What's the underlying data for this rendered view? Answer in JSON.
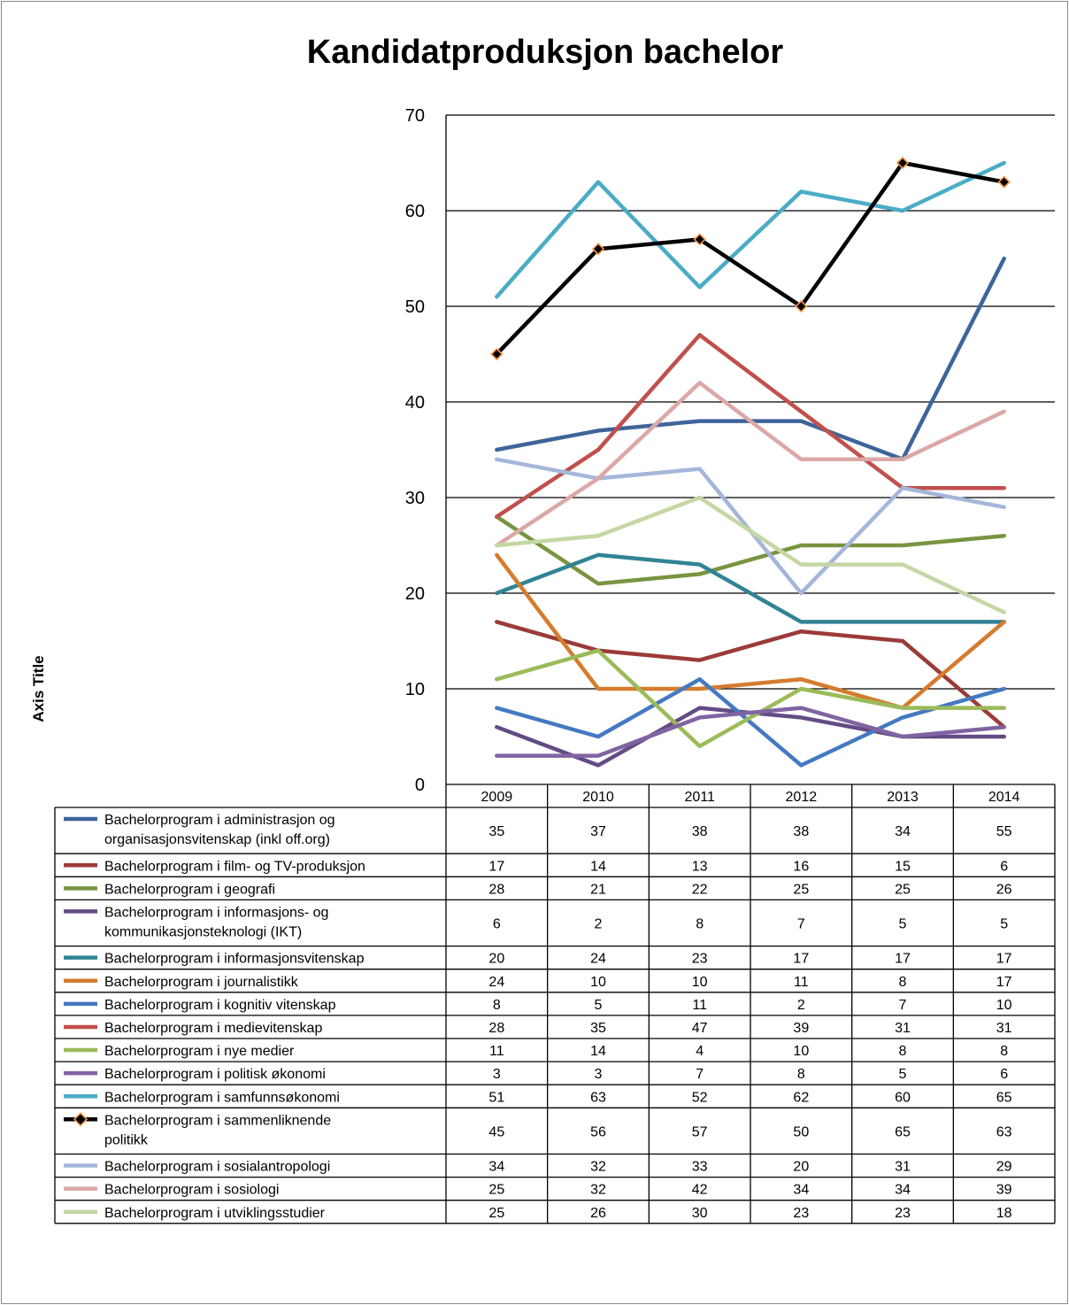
{
  "chart_data": {
    "type": "line",
    "title": "Kandidatproduksjon bachelor",
    "ylabel": "Axis Title",
    "xlabel": "",
    "ylim": [
      0,
      70
    ],
    "yticks": [
      0,
      10,
      20,
      30,
      40,
      50,
      60,
      70
    ],
    "grid": "horizontal",
    "legend": "data-table-below",
    "categories": [
      "2009",
      "2010",
      "2011",
      "2012",
      "2013",
      "2014"
    ],
    "series": [
      {
        "name": "Bachelorprogram i administrasjon og organisasjonsvitenskap (inkl off.org)",
        "label_lines": [
          "Bachelorprogram i administrasjon og",
          "organisasjonsvitenskap (inkl off.org)"
        ],
        "values": [
          35,
          37,
          38,
          38,
          34,
          55
        ],
        "color": "#3e659a"
      },
      {
        "name": "Bachelorprogram i film- og TV-produksjon",
        "label_lines": [
          "Bachelorprogram i film- og TV-produksjon"
        ],
        "values": [
          17,
          14,
          13,
          16,
          15,
          6
        ],
        "color": "#9b3b39"
      },
      {
        "name": "Bachelorprogram i geografi",
        "label_lines": [
          "Bachelorprogram i geografi"
        ],
        "values": [
          28,
          21,
          22,
          25,
          25,
          26
        ],
        "color": "#789440"
      },
      {
        "name": "Bachelorprogram i informasjons- og kommunikasjonsteknologi (IKT)",
        "label_lines": [
          "Bachelorprogram i informasjons- og",
          "kommunikasjonsteknologi (IKT)"
        ],
        "values": [
          6,
          2,
          8,
          7,
          5,
          5
        ],
        "color": "#634c85"
      },
      {
        "name": "Bachelorprogram i informasjonsvitenskap",
        "label_lines": [
          "Bachelorprogram i informasjonsvitenskap"
        ],
        "values": [
          20,
          24,
          23,
          17,
          17,
          17
        ],
        "color": "#318495"
      },
      {
        "name": "Bachelorprogram i journalistikk",
        "label_lines": [
          "Bachelorprogram i journalistikk"
        ],
        "values": [
          24,
          10,
          10,
          11,
          8,
          17
        ],
        "color": "#d57b2e"
      },
      {
        "name": "Bachelorprogram i kognitiv vitenskap",
        "label_lines": [
          "Bachelorprogram i kognitiv vitenskap"
        ],
        "values": [
          8,
          5,
          11,
          2,
          7,
          10
        ],
        "color": "#4579c1"
      },
      {
        "name": "Bachelorprogram i medievitenskap",
        "label_lines": [
          "Bachelorprogram i medievitenskap"
        ],
        "values": [
          28,
          35,
          47,
          39,
          31,
          31
        ],
        "color": "#c0504d"
      },
      {
        "name": "Bachelorprogram i nye medier",
        "label_lines": [
          "Bachelorprogram i nye medier"
        ],
        "values": [
          11,
          14,
          4,
          10,
          8,
          8
        ],
        "color": "#9bbb59"
      },
      {
        "name": "Bachelorprogram i politisk økonomi",
        "label_lines": [
          "Bachelorprogram i politisk økonomi"
        ],
        "values": [
          3,
          3,
          7,
          8,
          5,
          6
        ],
        "color": "#8064a2"
      },
      {
        "name": "Bachelorprogram i samfunnsøkonomi",
        "label_lines": [
          "Bachelorprogram i samfunnsøkonomi"
        ],
        "values": [
          51,
          63,
          52,
          62,
          60,
          65
        ],
        "color": "#4bacc6"
      },
      {
        "name": "Bachelorprogram i sammenliknende politikk",
        "label_lines": [
          "Bachelorprogram i sammenliknende",
          "politikk"
        ],
        "values": [
          45,
          56,
          57,
          50,
          65,
          63
        ],
        "color": "#000000",
        "marker": "diamond",
        "marker_color": "#f79646"
      },
      {
        "name": "Bachelorprogram i sosialantropologi",
        "label_lines": [
          "Bachelorprogram i sosialantropologi"
        ],
        "values": [
          34,
          32,
          33,
          20,
          31,
          29
        ],
        "color": "#a5b6da"
      },
      {
        "name": "Bachelorprogram i sosiologi",
        "label_lines": [
          "Bachelorprogram i sosiologi"
        ],
        "values": [
          25,
          32,
          42,
          34,
          34,
          39
        ],
        "color": "#dba8a6"
      },
      {
        "name": "Bachelorprogram i utviklingsstudier",
        "label_lines": [
          "Bachelorprogram i utviklingsstudier"
        ],
        "values": [
          25,
          26,
          30,
          23,
          23,
          18
        ],
        "color": "#c4d7a4"
      }
    ]
  }
}
